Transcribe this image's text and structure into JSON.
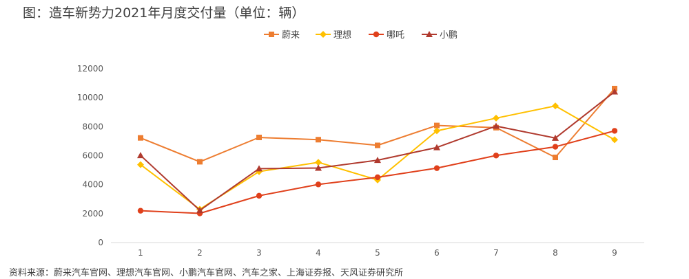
{
  "header": {
    "title": "图：造车新势力2021年月度交付量（单位：辆）"
  },
  "footer": {
    "source": "资料来源：蔚来汽车官网、理想汽车官网、小鹏汽车官网、汽车之家、上海证券报、天风证券研究所"
  },
  "chart_data": {
    "type": "line",
    "title": "图：造车新势力2021年月度交付量（单位：辆）",
    "xlabel": "",
    "ylabel": "",
    "x": [
      1,
      2,
      3,
      4,
      5,
      6,
      7,
      8,
      9
    ],
    "ylim": [
      0,
      12000
    ],
    "yticks": [
      0,
      2000,
      4000,
      6000,
      8000,
      10000,
      12000
    ],
    "grid": false,
    "legend_position": "top",
    "series": [
      {
        "name": "蔚来",
        "color": "#ED7D31",
        "marker": "square",
        "values": [
          7225,
          5578,
          7257,
          7102,
          6711,
          8083,
          7931,
          5880,
          10628
        ]
      },
      {
        "name": "理想",
        "color": "#FFC000",
        "marker": "diamond",
        "values": [
          5379,
          2300,
          4900,
          5539,
          4323,
          7713,
          8589,
          9433,
          7094
        ]
      },
      {
        "name": "哪吒",
        "color": "#E0401B",
        "marker": "circle",
        "values": [
          2197,
          2015,
          3232,
          4015,
          4508,
          5138,
          6011,
          6613,
          7712
        ]
      },
      {
        "name": "小鹏",
        "color": "#B03A2E",
        "marker": "triangle",
        "values": [
          6015,
          2223,
          5102,
          5147,
          5686,
          6565,
          8040,
          7214,
          10412
        ]
      }
    ]
  }
}
